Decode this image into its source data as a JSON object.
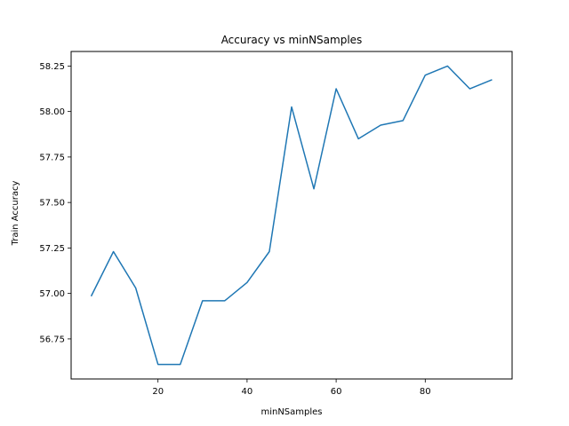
{
  "chart_data": {
    "type": "line",
    "title": "Accuracy vs minNSamples",
    "xlabel": "minNSamples",
    "ylabel": "Train Accuracy",
    "xlim": [
      0.5,
      99.5
    ],
    "ylim": [
      56.53,
      58.33
    ],
    "x_ticks": [
      20,
      40,
      60,
      80
    ],
    "x_tick_labels": [
      "20",
      "40",
      "60",
      "80"
    ],
    "y_ticks": [
      56.75,
      57.0,
      57.25,
      57.5,
      57.75,
      58.0,
      58.25
    ],
    "y_tick_labels": [
      "56.75",
      "57.00",
      "57.25",
      "57.50",
      "57.75",
      "58.00",
      "58.25"
    ],
    "grid": false,
    "series": [
      {
        "color": "#1f77b4",
        "x": [
          5,
          10,
          15,
          20,
          25,
          30,
          35,
          40,
          45,
          50,
          55,
          60,
          65,
          70,
          75,
          80,
          85,
          90,
          95
        ],
        "y": [
          56.985,
          57.23,
          57.03,
          56.61,
          56.61,
          56.96,
          56.96,
          57.06,
          57.23,
          58.025,
          57.575,
          58.125,
          57.85,
          57.925,
          57.95,
          58.2,
          58.25,
          58.125,
          58.175
        ]
      }
    ]
  }
}
